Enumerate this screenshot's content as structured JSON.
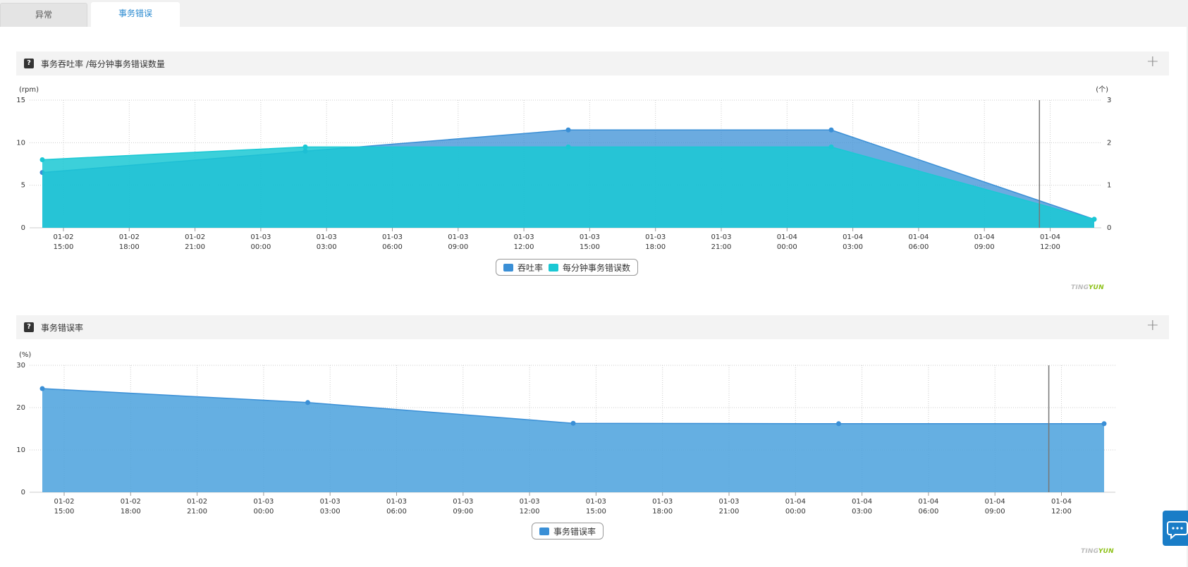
{
  "tabs": [
    {
      "label": "异常",
      "active": false
    },
    {
      "label": "事务错误",
      "active": true
    }
  ],
  "panels": [
    {
      "title": "事务吞吐率 /每分钟事务错误数量",
      "help_icon": "?",
      "expand_icon": "plus-icon"
    },
    {
      "title": "事务错误率",
      "help_icon": "?",
      "expand_icon": "plus-icon"
    }
  ],
  "brand": {
    "part1": "TINGYUN",
    "part1_text": "TING",
    "part2_text": "YUN"
  },
  "colors": {
    "throughput": "#3a8fd6",
    "errors": "#1ac8d4",
    "error_rate": "#4aa1dd",
    "tab_active": "#2a8ad0"
  },
  "chart_data": [
    {
      "type": "area",
      "x_ticks": [
        [
          "01-02",
          "15:00"
        ],
        [
          "01-02",
          "18:00"
        ],
        [
          "01-02",
          "21:00"
        ],
        [
          "01-03",
          "00:00"
        ],
        [
          "01-03",
          "03:00"
        ],
        [
          "01-03",
          "06:00"
        ],
        [
          "01-03",
          "09:00"
        ],
        [
          "01-03",
          "12:00"
        ],
        [
          "01-03",
          "15:00"
        ],
        [
          "01-03",
          "18:00"
        ],
        [
          "01-03",
          "21:00"
        ],
        [
          "01-04",
          "00:00"
        ],
        [
          "01-04",
          "03:00"
        ],
        [
          "01-04",
          "06:00"
        ],
        [
          "01-04",
          "09:00"
        ],
        [
          "01-04",
          "12:00"
        ]
      ],
      "x_range_hours": [
        -1,
        47
      ],
      "ylabel_left": "(rpm)",
      "ylabel_right": "(个)",
      "ylim_left": [
        0,
        15
      ],
      "ylim_right": [
        0,
        3
      ],
      "y_ticks_left": [
        0,
        5,
        10,
        15
      ],
      "y_ticks_right": [
        0,
        1,
        2,
        3
      ],
      "grid": true,
      "marker_line_hour": 44.5,
      "series": [
        {
          "name": "吞吐率",
          "axis": "left",
          "x_hours": [
            -1,
            11,
            23,
            35,
            47
          ],
          "values": [
            6.5,
            9.0,
            11.5,
            11.5,
            1.0
          ]
        },
        {
          "name": "每分钟事务错误数",
          "axis": "right",
          "x_hours": [
            -1,
            11,
            23,
            35,
            47
          ],
          "values": [
            1.6,
            1.9,
            1.9,
            1.9,
            0.2
          ]
        }
      ],
      "legend_position": "bottom-center"
    },
    {
      "type": "area",
      "x_ticks": [
        [
          "01-02",
          "15:00"
        ],
        [
          "01-02",
          "18:00"
        ],
        [
          "01-02",
          "21:00"
        ],
        [
          "01-03",
          "00:00"
        ],
        [
          "01-03",
          "03:00"
        ],
        [
          "01-03",
          "06:00"
        ],
        [
          "01-03",
          "09:00"
        ],
        [
          "01-03",
          "12:00"
        ],
        [
          "01-03",
          "15:00"
        ],
        [
          "01-03",
          "18:00"
        ],
        [
          "01-03",
          "21:00"
        ],
        [
          "01-04",
          "00:00"
        ],
        [
          "01-04",
          "03:00"
        ],
        [
          "01-04",
          "06:00"
        ],
        [
          "01-04",
          "09:00"
        ],
        [
          "01-04",
          "12:00"
        ]
      ],
      "x_range_hours": [
        -1,
        47
      ],
      "ylabel_left": "(%)",
      "ylim_left": [
        0,
        30
      ],
      "y_ticks_left": [
        0,
        10,
        20,
        30
      ],
      "grid": true,
      "marker_line_hour": 44.5,
      "series": [
        {
          "name": "事务错误率",
          "axis": "left",
          "x_hours": [
            -1,
            11,
            23,
            35,
            47
          ],
          "values": [
            24.5,
            21.2,
            16.3,
            16.2,
            16.2
          ]
        }
      ],
      "legend_position": "bottom-center"
    }
  ]
}
